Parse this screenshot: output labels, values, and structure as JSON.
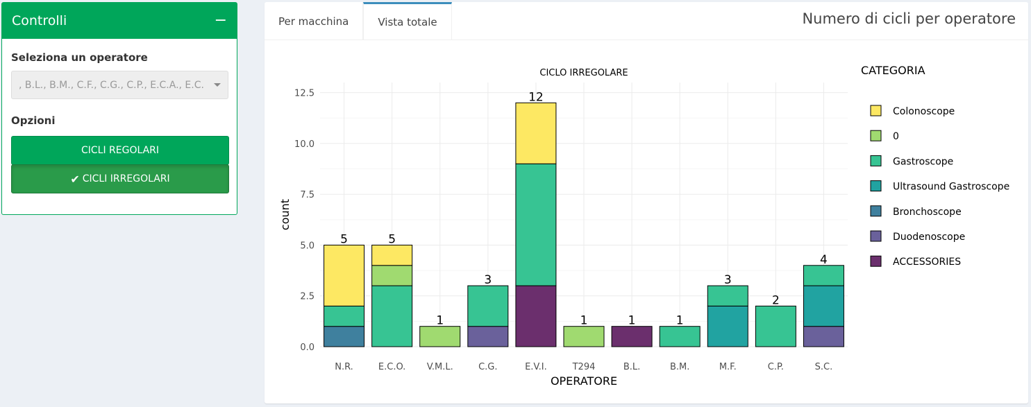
{
  "sidebar": {
    "title": "Controlli",
    "collapse_symbol": "−",
    "operator_label": "Seleziona un operatore",
    "operator_value": ", B.L., B.M., C.F., C.G., C.P., E.C.A., E.C.",
    "options_label": "Opzioni",
    "btn_regular": "CICLI REGOLARI",
    "btn_irregular": "CICLI IRREGOLARI",
    "check_glyph": "✔"
  },
  "tabs": [
    {
      "label": "Per macchina",
      "active": false
    },
    {
      "label": "Vista totale",
      "active": true
    }
  ],
  "panel_title": "Numero di cicli per operatore",
  "colors": {
    "Colonoscope": "#fde863",
    "0": "#a0da70",
    "Gastroscope": "#37c493",
    "Ultrasound Gastroscope": "#21a3a1",
    "Bronchoscope": "#3f809e",
    "Duodenoscope": "#6a619b",
    "ACCESSORIES": "#6b2f6d"
  },
  "chart_data": {
    "type": "bar",
    "stacked": true,
    "title": "CICLO IRREGOLARE",
    "xlabel": "OPERATORE",
    "ylabel": "count",
    "ylim": [
      0,
      13
    ],
    "yticks": [
      "0.0",
      "2.5",
      "5.0",
      "7.5",
      "10.0",
      "12.5"
    ],
    "ytick_values": [
      0,
      2.5,
      5,
      7.5,
      10,
      12.5
    ],
    "legend_title": "CATEGORIA",
    "legend_position": "right",
    "legend": [
      "Colonoscope",
      "0",
      "Gastroscope",
      "Ultrasound Gastroscope",
      "Bronchoscope",
      "Duodenoscope",
      "ACCESSORIES"
    ],
    "categories": [
      "N.R.",
      "E.C.O.",
      "V.M.L.",
      "C.G.",
      "E.V.I.",
      "T294",
      "B.L.",
      "B.M.",
      "M.F.",
      "C.P.",
      "S.C."
    ],
    "totals": [
      "5",
      "5",
      "1",
      "3",
      "12",
      "1",
      "1",
      "1",
      "3",
      "2",
      "4"
    ],
    "series": [
      {
        "name": "ACCESSORIES",
        "values": [
          0,
          0,
          0,
          0,
          3,
          0,
          1,
          0,
          0,
          0,
          0
        ]
      },
      {
        "name": "Duodenoscope",
        "values": [
          0,
          0,
          0,
          1,
          0,
          0,
          0,
          0,
          0,
          0,
          1
        ]
      },
      {
        "name": "Bronchoscope",
        "values": [
          1,
          0,
          0,
          0,
          0,
          0,
          0,
          0,
          0,
          0,
          0
        ]
      },
      {
        "name": "Ultrasound Gastroscope",
        "values": [
          0,
          0,
          0,
          0,
          0,
          0,
          0,
          0,
          2,
          0,
          2
        ]
      },
      {
        "name": "Gastroscope",
        "values": [
          1,
          3,
          0,
          2,
          6,
          0,
          0,
          1,
          1,
          2,
          1
        ]
      },
      {
        "name": "0",
        "values": [
          0,
          1,
          1,
          0,
          0,
          1,
          0,
          0,
          0,
          0,
          0
        ]
      },
      {
        "name": "Colonoscope",
        "values": [
          3,
          1,
          0,
          0,
          3,
          0,
          0,
          0,
          0,
          0,
          0
        ]
      }
    ]
  }
}
